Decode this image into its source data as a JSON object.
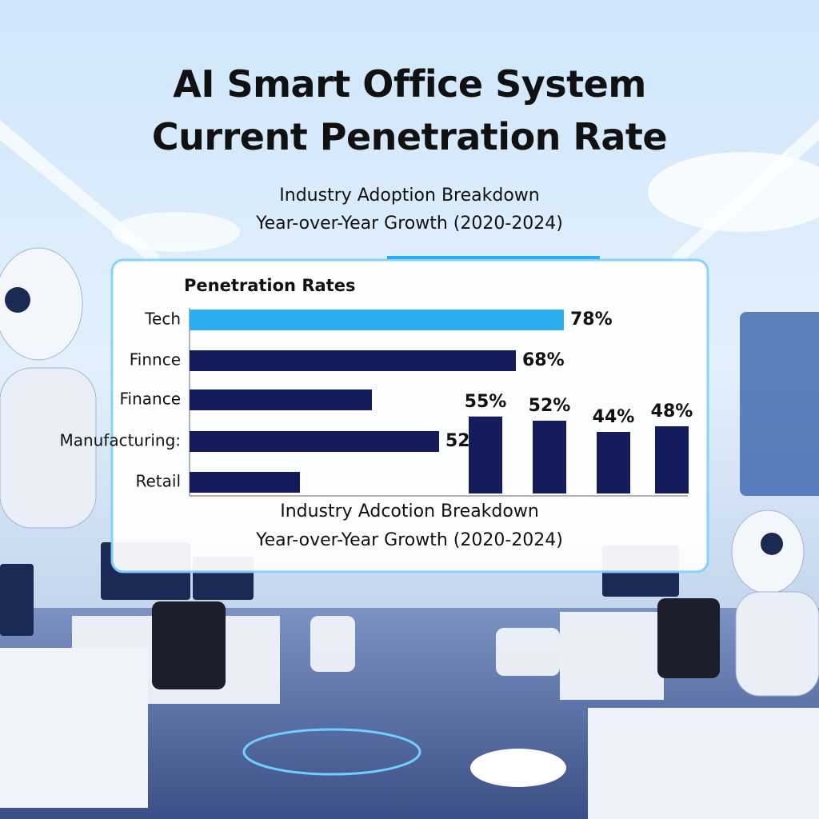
{
  "chart_data": [
    {
      "type": "bar",
      "orientation": "horizontal",
      "title": "AI Smart Office System Current Penetration Rate",
      "subtitle": [
        "Industry Adoption Breakdown",
        "Year-over-Year Growth (2020-2024)"
      ],
      "panel_title": "Penetration Rates",
      "categories": [
        "Tech",
        "Finnce",
        "Finance",
        "Manufacturing:",
        "Retail"
      ],
      "values": [
        78,
        68,
        38,
        52,
        23
      ],
      "value_labels": [
        "78%",
        "68%",
        null,
        "52%",
        null
      ],
      "colors": [
        "#2aaef0",
        "#141c5c",
        "#141c5c",
        "#141c5c",
        "#141c5c"
      ],
      "xlim": [
        0,
        100
      ]
    },
    {
      "type": "column",
      "values": [
        55,
        52,
        44,
        48
      ],
      "value_labels": [
        "55%",
        "52%",
        "44%",
        "48%"
      ],
      "color": "#141c5c",
      "ylim": [
        0,
        60
      ],
      "caption": [
        "Industry Adcotion Breakdown",
        "Year-over-Year Growth (2020-2024)"
      ]
    }
  ]
}
